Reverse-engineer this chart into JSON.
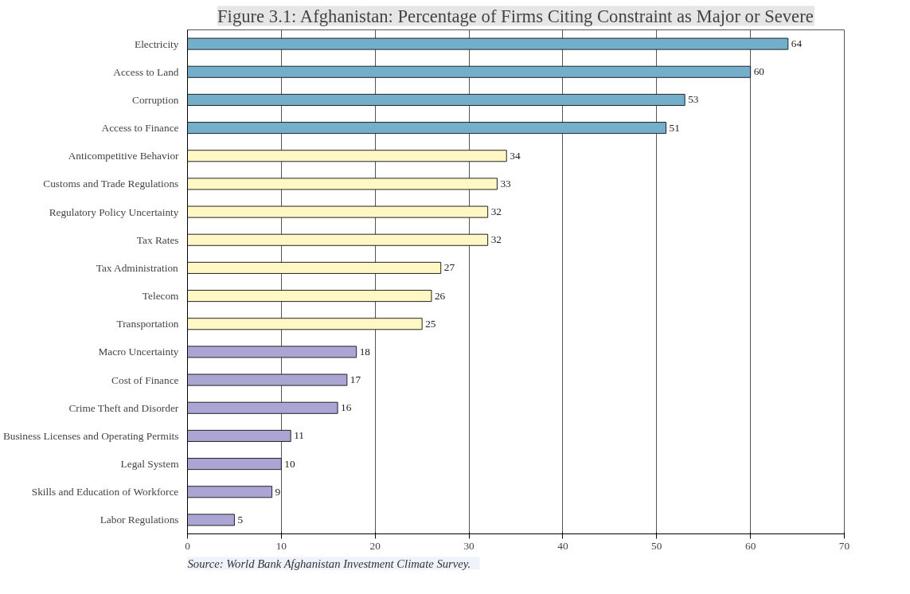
{
  "chart_data": {
    "type": "bar",
    "orientation": "horizontal",
    "title": "Figure 3.1: Afghanistan: Percentage of Firms Citing Constraint as Major or Severe",
    "categories": [
      "Electricity",
      "Access to Land",
      "Corruption",
      "Access to Finance",
      "Anticompetitive Behavior",
      "Customs and Trade Regulations",
      "Regulatory Policy Uncertainty",
      "Tax Rates",
      "Tax Administration",
      "Telecom",
      "Transportation",
      "Macro Uncertainty",
      "Cost of Finance",
      "Crime Theft and Disorder",
      "Business Licenses and Operating Permits",
      "Legal System",
      "Skills and Education of Workforce",
      "Labor Regulations"
    ],
    "values": [
      64,
      60,
      53,
      51,
      34,
      33,
      32,
      32,
      27,
      26,
      25,
      18,
      17,
      16,
      11,
      10,
      9,
      5
    ],
    "colors": [
      "#73aecb",
      "#73aecb",
      "#73aecb",
      "#73aecb",
      "#fff8c4",
      "#fff8c4",
      "#fff8c4",
      "#fff8c4",
      "#fff8c4",
      "#fff8c4",
      "#fff8c4",
      "#aaa5d2",
      "#aaa5d2",
      "#aaa5d2",
      "#aaa5d2",
      "#aaa5d2",
      "#aaa5d2",
      "#aaa5d2"
    ],
    "xlim": [
      0,
      70
    ],
    "xticks": [
      0,
      10,
      20,
      30,
      40,
      50,
      60,
      70
    ],
    "grid": "x",
    "data_labels": true,
    "annotations": [
      "Source:    World Bank Afghanistan Investment Climate Survey."
    ]
  }
}
